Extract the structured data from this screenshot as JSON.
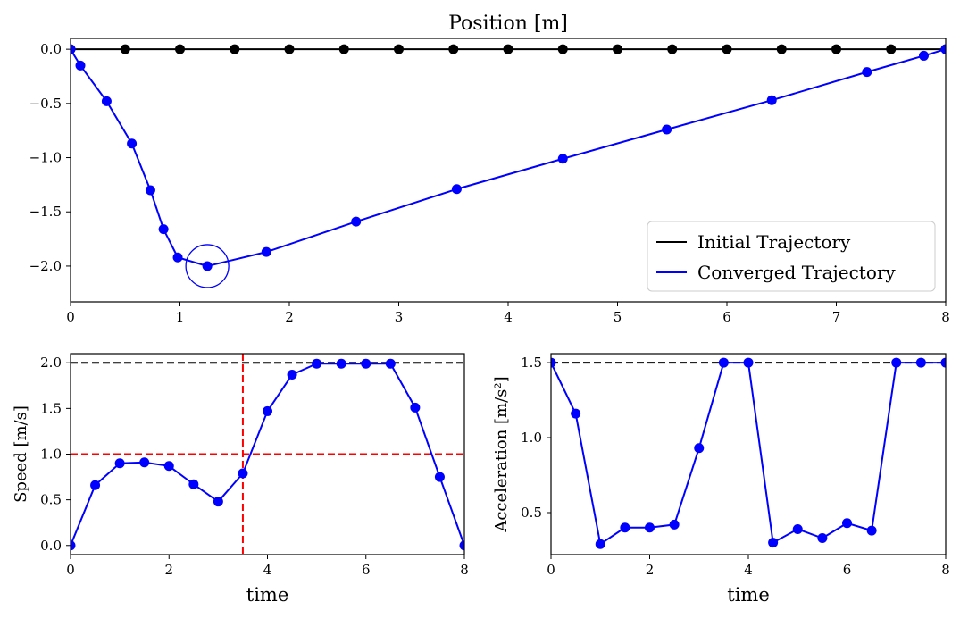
{
  "chart_data": [
    {
      "type": "line",
      "title": "Position [m]",
      "xlabel": "",
      "ylabel": "",
      "xlim": [
        0,
        8
      ],
      "ylim": [
        -2.33,
        0.1
      ],
      "xticks": [
        0,
        1,
        2,
        3,
        4,
        5,
        6,
        7,
        8
      ],
      "yticks": [
        0.0,
        -0.5,
        -1.0,
        -1.5,
        -2.0
      ],
      "xtick_labels": [
        "0",
        "1",
        "2",
        "3",
        "4",
        "5",
        "6",
        "7",
        "8"
      ],
      "ytick_labels": [
        "0.0",
        "−0.5",
        "−1.0",
        "−1.5",
        "−2.0"
      ],
      "legend": {
        "position": "lower-right",
        "entries": [
          "Initial Trajectory",
          "Converged Trajectory"
        ]
      },
      "series": [
        {
          "name": "Initial Trajectory",
          "color": "#000000",
          "x": [
            0,
            0.5,
            1,
            1.5,
            2,
            2.5,
            3,
            3.5,
            4,
            4.5,
            5,
            5.5,
            6,
            6.5,
            7,
            7.5,
            8
          ],
          "y": [
            0,
            0,
            0,
            0,
            0,
            0,
            0,
            0,
            0,
            0,
            0,
            0,
            0,
            0,
            0,
            0,
            0
          ]
        },
        {
          "name": "Converged Trajectory",
          "color": "#0000ff",
          "x": [
            0,
            0.09,
            0.33,
            0.56,
            0.73,
            0.85,
            0.98,
            1.25,
            1.79,
            2.61,
            3.53,
            4.5,
            5.45,
            6.41,
            7.28,
            7.8,
            8
          ],
          "y": [
            0,
            -0.15,
            -0.48,
            -0.87,
            -1.3,
            -1.66,
            -1.92,
            -2.0,
            -1.87,
            -1.59,
            -1.29,
            -1.01,
            -0.74,
            -0.47,
            -0.21,
            -0.06,
            0
          ]
        }
      ],
      "annotations": [
        {
          "type": "circle",
          "x": 1.25,
          "y": -2.0,
          "color": "#0000ff"
        }
      ]
    },
    {
      "type": "line",
      "title": "",
      "xlabel": "time",
      "ylabel": "Speed [m/s]",
      "xlim": [
        0,
        8
      ],
      "ylim": [
        -0.1,
        2.1
      ],
      "xticks": [
        0,
        2,
        4,
        6,
        8
      ],
      "yticks": [
        0.0,
        0.5,
        1.0,
        1.5,
        2.0
      ],
      "xtick_labels": [
        "0",
        "2",
        "4",
        "6",
        "8"
      ],
      "ytick_labels": [
        "0.0",
        "0.5",
        "1.0",
        "1.5",
        "2.0"
      ],
      "series": [
        {
          "color": "#0000ff",
          "x": [
            0,
            0.5,
            1,
            1.5,
            2,
            2.5,
            3,
            3.5,
            4,
            4.5,
            5,
            5.5,
            6,
            6.5,
            7,
            7.5,
            8
          ],
          "y": [
            0,
            0.66,
            0.9,
            0.91,
            0.87,
            0.67,
            0.48,
            0.79,
            1.47,
            1.87,
            1.99,
            1.99,
            1.99,
            1.99,
            1.51,
            0.75,
            0
          ]
        }
      ],
      "reference_lines": [
        {
          "orientation": "horizontal",
          "value": 2.0,
          "color": "#000000",
          "style": "dashed"
        },
        {
          "orientation": "horizontal",
          "value": 1.0,
          "color": "#ff0000",
          "style": "dashed"
        },
        {
          "orientation": "vertical",
          "value": 3.5,
          "color": "#ff0000",
          "style": "dashed"
        }
      ]
    },
    {
      "type": "line",
      "title": "",
      "xlabel": "time",
      "ylabel": "Acceleration [m/s²]",
      "xlim": [
        0,
        8
      ],
      "ylim": [
        0.22,
        1.56
      ],
      "xticks": [
        0,
        2,
        4,
        6,
        8
      ],
      "yticks": [
        0.5,
        1.0,
        1.5
      ],
      "xtick_labels": [
        "0",
        "2",
        "4",
        "6",
        "8"
      ],
      "ytick_labels": [
        "0.5",
        "1.0",
        "1.5"
      ],
      "series": [
        {
          "color": "#0000ff",
          "x": [
            0,
            0.5,
            1,
            1.5,
            2,
            2.5,
            3,
            3.5,
            4,
            4.5,
            5,
            5.5,
            6,
            6.5,
            7,
            7.5,
            8
          ],
          "y": [
            1.5,
            1.16,
            0.29,
            0.4,
            0.4,
            0.42,
            0.93,
            1.5,
            1.5,
            0.3,
            0.39,
            0.33,
            0.43,
            0.38,
            1.5,
            1.5,
            1.5
          ]
        }
      ],
      "reference_lines": [
        {
          "orientation": "horizontal",
          "value": 1.5,
          "color": "#000000",
          "style": "dashed"
        }
      ]
    }
  ]
}
